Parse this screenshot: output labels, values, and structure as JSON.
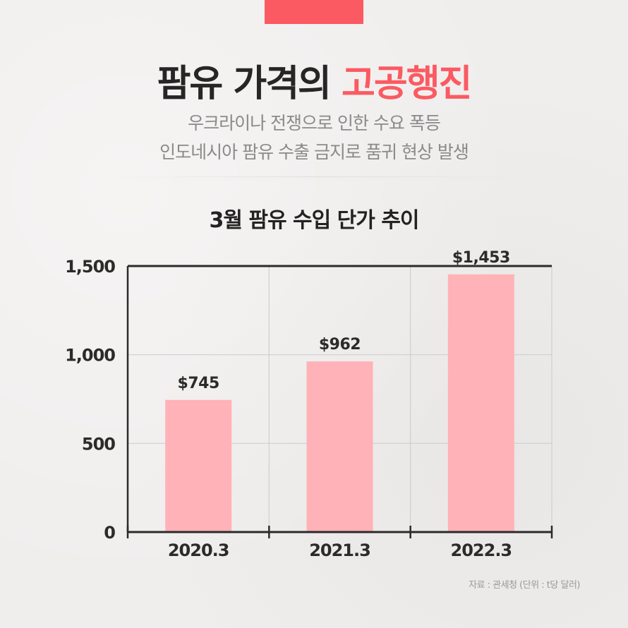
{
  "headline": {
    "part1": "팜유 가격의 ",
    "part2": "고공행진"
  },
  "subtitle": {
    "line1": "우크라이나 전쟁으로 인한 수요 폭등",
    "line2": "인도네시아 팜유 수출 금지로 품귀 현상 발생"
  },
  "colors": {
    "accent": "#fb5a62",
    "bar": "#ffb2b7",
    "text_dark": "#262626",
    "text_gray": "#8a8a8a",
    "axis": "#2b2b2b",
    "grid": "#cfcfcf"
  },
  "source": "자료 : 관세청 (단위 : t당 달러)",
  "chart_data": {
    "type": "bar",
    "title": "3월 팜유 수입 단가 추이",
    "categories": [
      "2020.3",
      "2021.3",
      "2022.3"
    ],
    "values": [
      745,
      962,
      1453
    ],
    "data_labels": [
      "$745",
      "$962",
      "$1,453"
    ],
    "yticks": [
      0,
      500,
      1000,
      1500
    ],
    "ytick_labels": [
      "0",
      "500",
      "1,000",
      "1,500"
    ],
    "ylim": [
      0,
      1500
    ],
    "xlabel": "",
    "ylabel": "",
    "grid": true
  }
}
